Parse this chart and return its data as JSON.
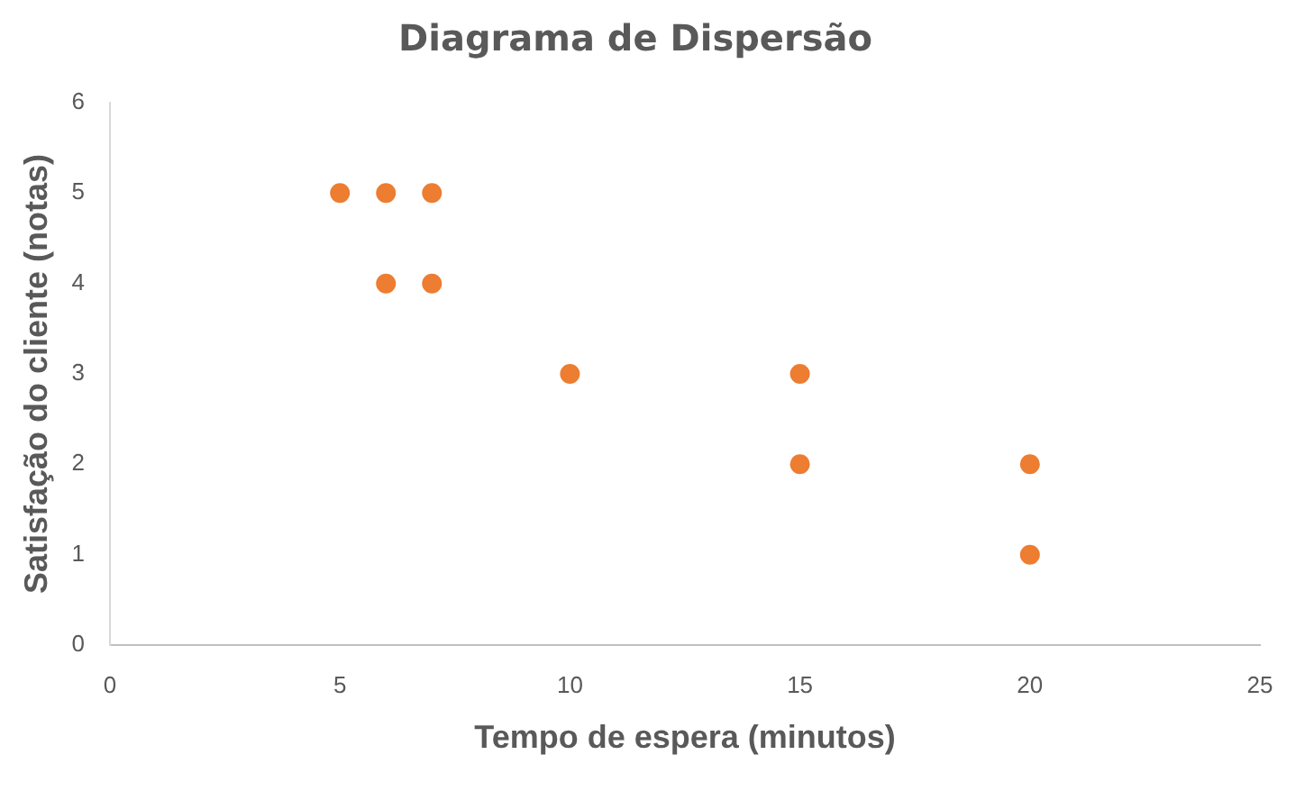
{
  "chart_data": {
    "type": "scatter",
    "title": "Diagrama de Dispersão",
    "xlabel": "Tempo de espera (minutos)",
    "ylabel": "Satisfação do cliente (notas)",
    "x": [
      5,
      6,
      7,
      6,
      7,
      10,
      15,
      15,
      20,
      20
    ],
    "values": [
      5,
      5,
      5,
      4,
      4,
      3,
      3,
      2,
      2,
      1
    ],
    "color": "#ed7d31",
    "xlim": [
      0,
      25
    ],
    "xticks": [
      0,
      5,
      10,
      15,
      20,
      25
    ],
    "ylim": [
      0,
      6
    ],
    "yticks": [
      0,
      1,
      2,
      3,
      4,
      5,
      6
    ],
    "grid": false,
    "legend": false,
    "marker": "circle"
  }
}
